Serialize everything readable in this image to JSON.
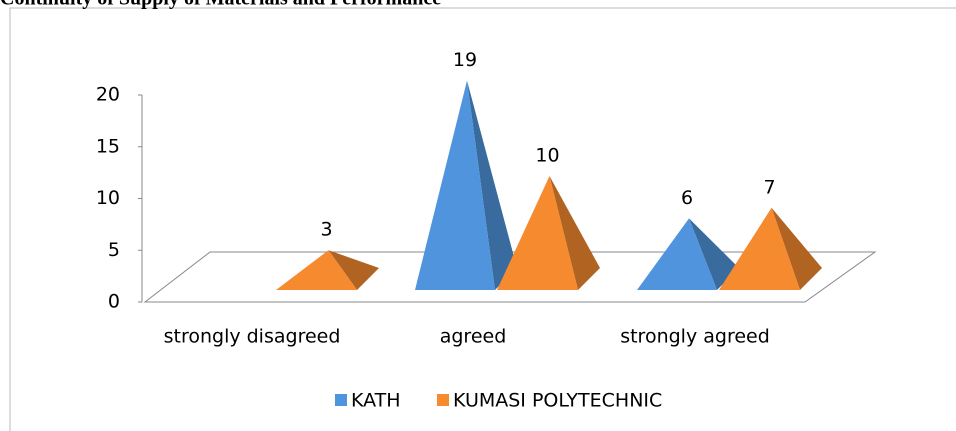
{
  "chart_data": {
    "type": "pyramid",
    "title": "Continuity of Supply of Materials and Performance",
    "categories": [
      "strongly disagreed",
      "agreed",
      "strongly agreed"
    ],
    "series": [
      {
        "name": "KATH",
        "color": "#4f94dc",
        "values": [
          null,
          19,
          6
        ]
      },
      {
        "name": "KUMASI POLYTECHNIC",
        "color": "#f68a2f",
        "values": [
          3,
          10,
          7
        ]
      }
    ],
    "ylim": [
      0,
      20
    ],
    "yticks": [
      0,
      5,
      10,
      15,
      20
    ],
    "legend": "bottom"
  }
}
